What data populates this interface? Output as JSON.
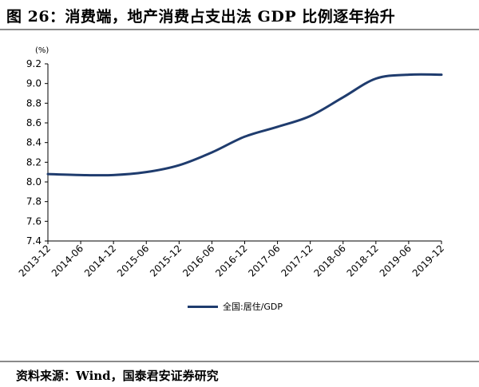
{
  "header": {
    "title": "图 26：消费端，地产消费占支出法 GDP 比例逐年抬升"
  },
  "footer": {
    "source": "资料来源：Wind，国泰君安证券研究"
  },
  "chart_data": {
    "type": "line",
    "title": "",
    "unit_label": "(%)",
    "ylim": [
      7.4,
      9.2
    ],
    "yticks": [
      "7.4",
      "7.6",
      "7.8",
      "8.0",
      "8.2",
      "8.4",
      "8.6",
      "8.8",
      "9.0",
      "9.2"
    ],
    "categories": [
      "2013-12",
      "2014-06",
      "2014-12",
      "2015-06",
      "2015-12",
      "2016-06",
      "2016-12",
      "2017-06",
      "2017-12",
      "2018-06",
      "2018-12",
      "2019-06",
      "2019-12"
    ],
    "series": [
      {
        "name": "全国:居住/GDP",
        "color": "#1f3c6e",
        "values": [
          8.08,
          8.07,
          8.07,
          8.1,
          8.17,
          8.3,
          8.46,
          8.56,
          8.67,
          8.86,
          9.05,
          9.09,
          9.09
        ]
      }
    ],
    "legend_position": "bottom",
    "grid": false
  }
}
